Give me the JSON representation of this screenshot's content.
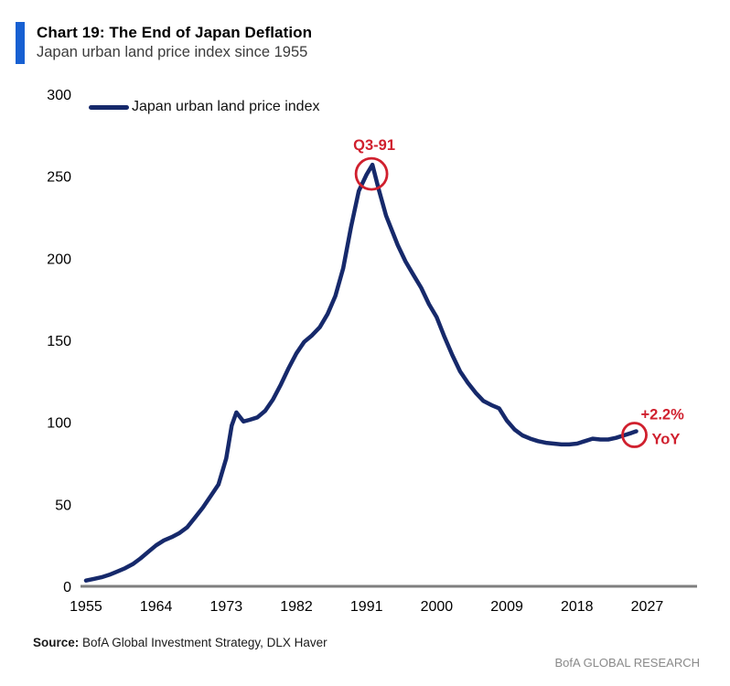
{
  "header": {
    "title": "Chart 19: The End of Japan Deflation",
    "subtitle": "Japan urban land price index since 1955",
    "accent_color": "#1760d2"
  },
  "legend": {
    "label": "Japan urban land price index"
  },
  "colors": {
    "line": "#16296b",
    "annotation_red": "#d0202e",
    "axis_gray": "#7f7f7f",
    "tick_text": "#000000"
  },
  "chart_data": {
    "type": "line",
    "title": "Chart 19: The End of Japan Deflation",
    "subtitle": "Japan urban land price index since 1955",
    "xlabel": "",
    "ylabel": "",
    "ylim": [
      0,
      300
    ],
    "xlim": [
      1954.3,
      2033.4
    ],
    "grid": false,
    "legend_position": "top-left",
    "yticks": [
      0,
      50,
      100,
      150,
      200,
      250,
      300
    ],
    "xticks": [
      1955,
      1964,
      1973,
      1982,
      1991,
      2000,
      2009,
      2018,
      2027
    ],
    "series": [
      {
        "name": "Japan urban land price index",
        "x": [
          1955,
          1956,
          1957,
          1958,
          1959,
          1960,
          1961,
          1962,
          1963,
          1964,
          1965,
          1966,
          1967,
          1968,
          1969,
          1970,
          1971,
          1972,
          1973,
          1973.7,
          1974.3,
          1975.2,
          1976,
          1977,
          1978,
          1979,
          1980,
          1981,
          1982,
          1983,
          1984,
          1985,
          1986,
          1987,
          1988,
          1989,
          1990,
          1991,
          1991.75,
          1992.5,
          1993.5,
          1995,
          1996,
          1997,
          1998,
          1999,
          2000,
          2001,
          2002,
          2003,
          2004,
          2005,
          2006,
          2007,
          2008,
          2009,
          2010,
          2011,
          2012,
          2013,
          2014,
          2015,
          2016,
          2017,
          2018,
          2019,
          2020,
          2021,
          2022,
          2023,
          2024,
          2025,
          2025.6
        ],
        "values": [
          3.5,
          4.5,
          5.5,
          7,
          9,
          11,
          13.5,
          17,
          21,
          25,
          28,
          30,
          32.5,
          36,
          42,
          48,
          55,
          62,
          78,
          98,
          106,
          100.5,
          101.5,
          103,
          107,
          114,
          123,
          133,
          142,
          149,
          153,
          158,
          166,
          177,
          194,
          219,
          241,
          251,
          257,
          243,
          226,
          208,
          198,
          190,
          182,
          172,
          164,
          152,
          141,
          131,
          124,
          118,
          113,
          110.5,
          108.5,
          101,
          95.5,
          92,
          90,
          88.5,
          87.5,
          87,
          86.5,
          86.5,
          87,
          88.5,
          90,
          89.5,
          89.5,
          90.5,
          92,
          93.5,
          94.5
        ]
      }
    ],
    "annotations": [
      {
        "id": "peak",
        "label": "Q3-91",
        "x": 1991.75,
        "y": 257,
        "label_position": "above"
      },
      {
        "id": "latest",
        "lines": [
          "+2.2%",
          "YoY"
        ],
        "x": 2025.6,
        "y": 94.5,
        "label_position": "right"
      }
    ]
  },
  "footer": {
    "source_label": "Source:",
    "source_text": " BofA Global Investment Strategy, DLX Haver",
    "brand": "BofA GLOBAL RESEARCH"
  }
}
